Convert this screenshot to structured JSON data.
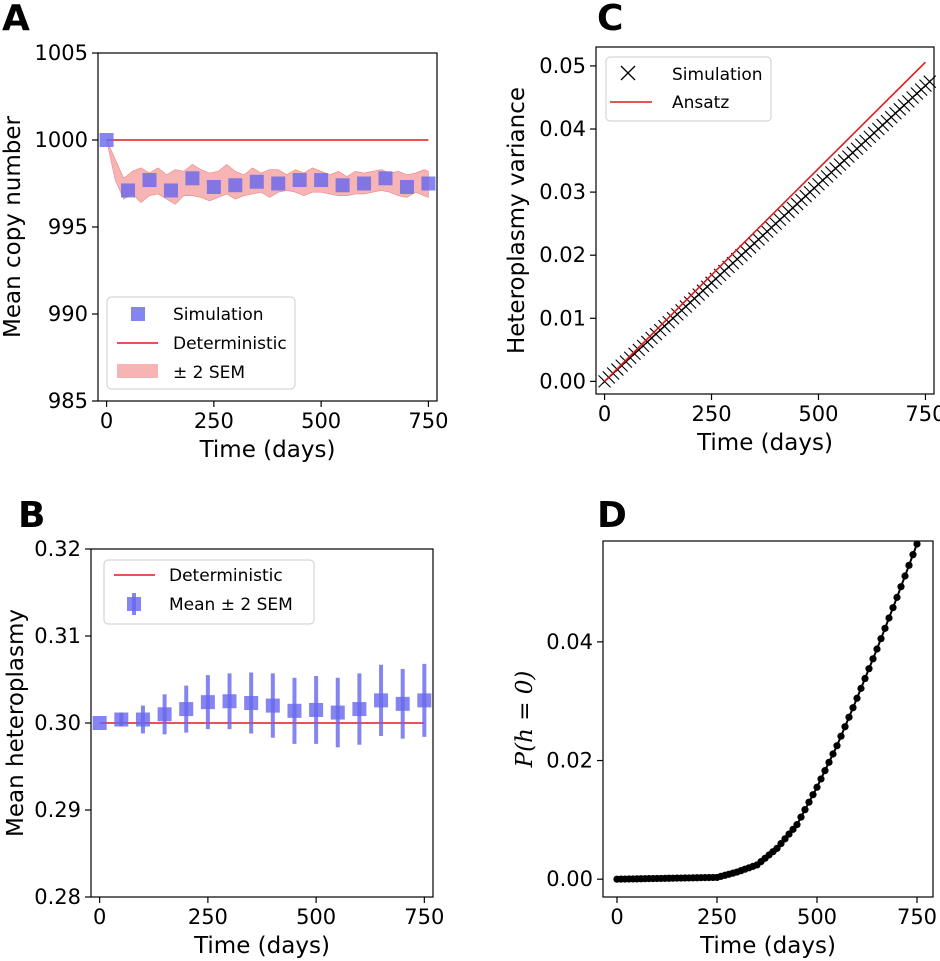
{
  "chart_data": [
    {
      "panel": "A",
      "type": "scatter",
      "xlabel": "Time (days)",
      "ylabel": "Mean copy number",
      "xlim": [
        -20,
        770
      ],
      "ylim": [
        985,
        1005
      ],
      "xticks": [
        0,
        250,
        500,
        750
      ],
      "yticks": [
        985,
        990,
        995,
        1000,
        1005
      ],
      "legend": {
        "placement": "lower-left",
        "entries": [
          "Simulation",
          "Deterministic",
          "± 2 SEM"
        ]
      },
      "colors": {
        "simulation": "#6666ee",
        "deterministic": "#e31a1c",
        "band": "#f6a7a7"
      },
      "series": [
        {
          "name": "Simulation",
          "x": [
            0,
            50,
            100,
            150,
            200,
            250,
            300,
            350,
            400,
            450,
            500,
            550,
            600,
            650,
            700,
            750
          ],
          "values": [
            1000.0,
            997.1,
            997.7,
            997.1,
            997.8,
            997.3,
            997.4,
            997.6,
            997.5,
            997.7,
            997.7,
            997.4,
            997.5,
            997.8,
            997.3,
            997.5
          ]
        },
        {
          "name": "Deterministic",
          "x": [
            0,
            750
          ],
          "values": [
            1000,
            1000
          ]
        }
      ],
      "band": {
        "name": "± 2 SEM",
        "x": [
          0,
          20,
          40,
          60,
          80,
          100,
          120,
          140,
          160,
          180,
          200,
          220,
          240,
          260,
          280,
          300,
          320,
          340,
          360,
          380,
          400,
          420,
          440,
          460,
          480,
          500,
          520,
          540,
          560,
          580,
          600,
          620,
          640,
          660,
          680,
          700,
          720,
          740,
          750
        ],
        "lower": [
          1000.0,
          997.7,
          996.6,
          996.9,
          996.4,
          996.8,
          996.9,
          996.6,
          996.3,
          996.8,
          996.8,
          996.7,
          996.5,
          996.7,
          996.9,
          996.6,
          996.8,
          996.9,
          997.0,
          996.7,
          997.0,
          997.1,
          997.0,
          996.8,
          997.0,
          997.0,
          996.9,
          996.8,
          996.8,
          996.9,
          996.9,
          997.0,
          997.1,
          997.0,
          996.8,
          996.7,
          997.0,
          996.8,
          996.7
        ],
        "upper": [
          1000.0,
          998.9,
          997.8,
          998.2,
          998.4,
          998.1,
          998.4,
          998.0,
          998.3,
          998.2,
          998.6,
          998.3,
          998.1,
          998.2,
          998.6,
          998.2,
          998.0,
          998.4,
          998.1,
          998.3,
          998.3,
          998.0,
          998.3,
          998.1,
          998.4,
          998.2,
          998.0,
          998.2,
          997.9,
          998.2,
          998.1,
          998.2,
          998.3,
          998.1,
          998.2,
          998.0,
          998.1,
          998.3,
          998.2
        ]
      }
    },
    {
      "panel": "B",
      "type": "scatter",
      "xlabel": "Time (days)",
      "ylabel": "Mean heteroplasmy",
      "xlim": [
        -20,
        770
      ],
      "ylim": [
        0.28,
        0.32
      ],
      "xticks": [
        0,
        250,
        500,
        750
      ],
      "yticks": [
        0.28,
        0.29,
        0.3,
        0.31,
        0.32
      ],
      "ytick_labels": [
        "0.28",
        "0.29",
        "0.30",
        "0.31",
        "0.32"
      ],
      "legend": {
        "placement": "top-left",
        "entries": [
          "Deterministic",
          "Mean ± 2 SEM"
        ]
      },
      "colors": {
        "simulation": "#6666ee",
        "deterministic": "#e31a1c"
      },
      "series": [
        {
          "name": "Deterministic",
          "x": [
            0,
            750
          ],
          "values": [
            0.3,
            0.3
          ]
        },
        {
          "name": "Mean ± 2 SEM",
          "x": [
            0,
            50,
            100,
            150,
            200,
            250,
            300,
            350,
            400,
            450,
            500,
            550,
            600,
            650,
            700,
            750
          ],
          "values": [
            0.3,
            0.3004,
            0.3004,
            0.301,
            0.3016,
            0.3024,
            0.3025,
            0.3023,
            0.302,
            0.3014,
            0.3015,
            0.3012,
            0.3016,
            0.3026,
            0.3022,
            0.3026
          ],
          "err": [
            0.0,
            0.0008,
            0.0016,
            0.0023,
            0.0027,
            0.0031,
            0.0032,
            0.0035,
            0.0037,
            0.0038,
            0.0039,
            0.004,
            0.0041,
            0.0041,
            0.004,
            0.0042
          ]
        }
      ]
    },
    {
      "panel": "C",
      "type": "line",
      "xlabel": "Time (days)",
      "ylabel": "Heteroplasmy variance",
      "xlim": [
        -20,
        770
      ],
      "ylim": [
        -0.002,
        0.053
      ],
      "xticks": [
        0,
        250,
        500,
        750
      ],
      "yticks": [
        0.0,
        0.01,
        0.02,
        0.03,
        0.04,
        0.05
      ],
      "ytick_labels": [
        "0.00",
        "0.01",
        "0.02",
        "0.03",
        "0.04",
        "0.05"
      ],
      "legend": {
        "placement": "top-left",
        "entries": [
          "Simulation",
          "Ansatz"
        ]
      },
      "colors": {
        "simulation": "#000000",
        "ansatz": "#e31a1c"
      },
      "series": [
        {
          "name": "Simulation",
          "x_start": 0,
          "x_step": 10,
          "x_end": 760,
          "slope": 6.25e-05
        },
        {
          "name": "Ansatz",
          "x": [
            0,
            750
          ],
          "values": [
            0.0,
            0.0506
          ]
        }
      ]
    },
    {
      "panel": "D",
      "type": "line",
      "xlabel": "Time (days)",
      "ylabel": "P(h = 0)",
      "xlim": [
        -35,
        790
      ],
      "ylim": [
        -0.003,
        0.057
      ],
      "xticks": [
        0,
        250,
        500,
        750
      ],
      "yticks": [
        0.0,
        0.02,
        0.04
      ],
      "ytick_labels": [
        "0.00",
        "0.02",
        "0.04"
      ],
      "colors": {
        "line": "#000000"
      },
      "series": [
        {
          "name": "",
          "x": [
            0,
            250,
            300,
            350,
            400,
            450,
            500,
            550,
            600,
            650,
            700,
            750
          ],
          "values": [
            0.0,
            0.0003,
            0.0012,
            0.0024,
            0.0052,
            0.0092,
            0.0155,
            0.0225,
            0.0305,
            0.0388,
            0.0475,
            0.0565
          ],
          "x_step": 10
        }
      ]
    }
  ]
}
